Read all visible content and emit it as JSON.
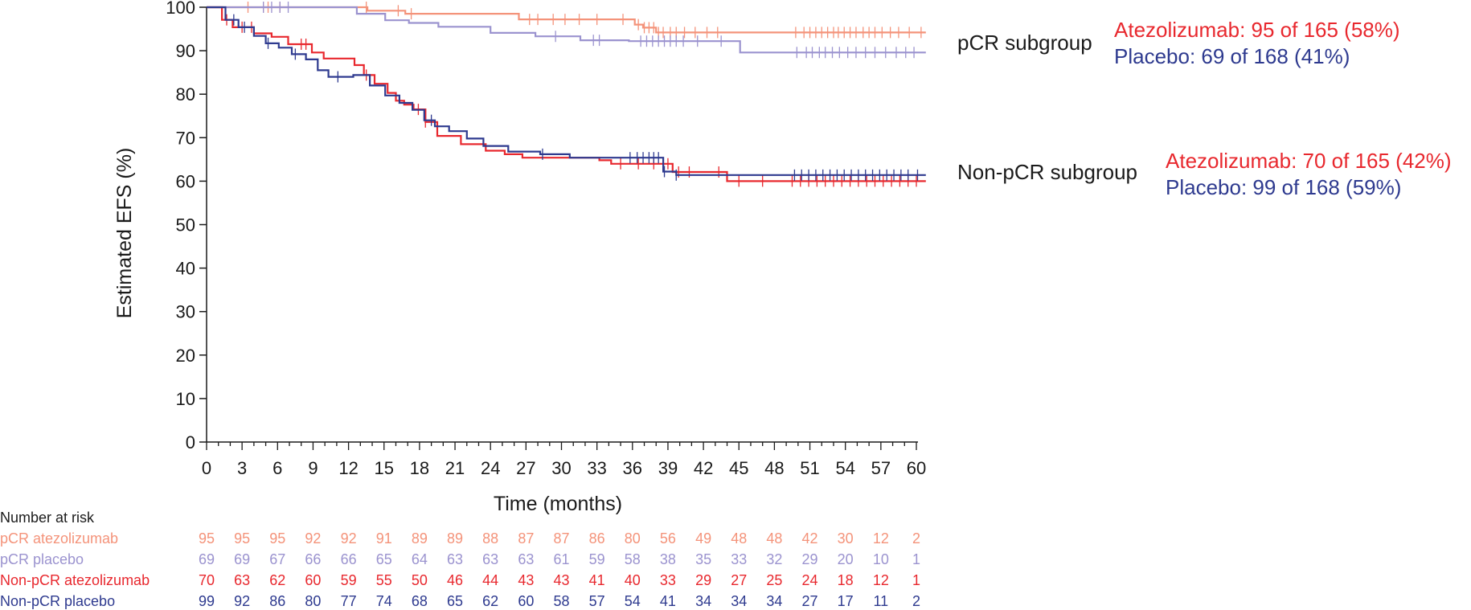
{
  "chart_data": {
    "type": "line",
    "subtype": "kaplan-meier",
    "xlabel": "Time (months)",
    "ylabel": "Estimated EFS (%)",
    "xlim": [
      0,
      60
    ],
    "ylim": [
      0,
      100
    ],
    "xticks": [
      0,
      3,
      6,
      9,
      12,
      15,
      18,
      21,
      24,
      27,
      30,
      33,
      36,
      39,
      42,
      45,
      48,
      51,
      54,
      57,
      60
    ],
    "yticks": [
      0,
      10,
      20,
      30,
      40,
      50,
      60,
      70,
      80,
      90,
      100
    ],
    "grid": false,
    "colors": {
      "pcr_atezolizumab": "#f4937a",
      "pcr_placebo": "#9b93cf",
      "nonpcr_atezolizumab": "#e8282e",
      "nonpcr_placebo": "#2e3a8f",
      "text": "#1a1a1a"
    },
    "groups": [
      {
        "label": "pCR subgroup",
        "lines": [
          {
            "text": "Atezolizumab: 95 of 165 (58%)",
            "color": "nonpcr_atezolizumab"
          },
          {
            "text": "Placebo: 69 of 168  (41%)",
            "color": "nonpcr_placebo"
          }
        ]
      },
      {
        "label": "Non-pCR subgroup",
        "lines": [
          {
            "text": "Atezolizumab: 70 of 165 (42%)",
            "color": "nonpcr_atezolizumab"
          },
          {
            "text": "Placebo: 99 of 168 (59%)",
            "color": "nonpcr_placebo"
          }
        ]
      }
    ],
    "series": [
      {
        "key": "pcr_atezolizumab",
        "steps": [
          [
            0,
            100
          ],
          [
            13.6,
            99.2
          ],
          [
            16.8,
            98.5
          ],
          [
            26.4,
            97.2
          ],
          [
            36.2,
            96
          ],
          [
            36.9,
            95.3
          ],
          [
            38,
            94.2
          ],
          [
            60.8,
            94.2
          ]
        ],
        "censors": [
          3.5,
          4.8,
          5.2,
          6.2,
          13.5,
          16.2,
          17.3,
          27.3,
          28,
          29.3,
          30.3,
          31.5,
          33,
          35.2,
          36.5,
          37,
          37.4,
          37.8,
          38.2,
          38.6,
          39.2,
          39.7,
          40.4,
          41.3,
          42.3,
          43.2,
          49.8,
          50.5,
          51,
          51.5,
          52,
          52.5,
          53,
          53.4,
          53.9,
          54.4,
          54.9,
          55.5,
          56,
          56.5,
          57.1,
          57.8,
          58.5,
          59.4,
          60.4
        ]
      },
      {
        "key": "pcr_placebo",
        "steps": [
          [
            0,
            100
          ],
          [
            12.7,
            98.5
          ],
          [
            15.1,
            97
          ],
          [
            17.1,
            96.4
          ],
          [
            19.6,
            95.5
          ],
          [
            24,
            94.1
          ],
          [
            27.8,
            93.3
          ],
          [
            31.6,
            92.4
          ],
          [
            35.7,
            92.2
          ],
          [
            45.1,
            89.6
          ],
          [
            60.8,
            89.6
          ]
        ],
        "censors": [
          4.8,
          5.5,
          6.2,
          6.9,
          29.5,
          32.7,
          33.2,
          36.7,
          37.2,
          37.7,
          38.2,
          38.7,
          39.2,
          39.7,
          40.3,
          41.5,
          43.5,
          49.9,
          50.7,
          51.2,
          51.8,
          52.3,
          52.9,
          53.5,
          54.2,
          54.9,
          55.7,
          56.5,
          57.4,
          58.3,
          59.1,
          59.8
        ]
      },
      {
        "key": "nonpcr_atezolizumab",
        "steps": [
          [
            0,
            100
          ],
          [
            1.3,
            97.1
          ],
          [
            2.2,
            95.4
          ],
          [
            4,
            94
          ],
          [
            5.5,
            93.2
          ],
          [
            6.9,
            91.5
          ],
          [
            8.9,
            89.6
          ],
          [
            9.9,
            88.2
          ],
          [
            12.5,
            86.7
          ],
          [
            13.3,
            84.4
          ],
          [
            14.2,
            82.4
          ],
          [
            15.3,
            80.3
          ],
          [
            16,
            78.5
          ],
          [
            16.7,
            77.6
          ],
          [
            17.5,
            76.5
          ],
          [
            18.5,
            73.6
          ],
          [
            19.5,
            70.4
          ],
          [
            21.5,
            68.5
          ],
          [
            23.6,
            67
          ],
          [
            25.2,
            66.2
          ],
          [
            26.7,
            65.4
          ],
          [
            33.2,
            64.8
          ],
          [
            34.2,
            64
          ],
          [
            39.4,
            62.1
          ],
          [
            44,
            60
          ],
          [
            60.8,
            60
          ]
        ],
        "censors": [
          1.7,
          3,
          3.8,
          8,
          8.4,
          13.5,
          17.9,
          18.5,
          35,
          36.5,
          37.8,
          39,
          39.9,
          40.8,
          43.3,
          45,
          47,
          49.5,
          50.2,
          50.9,
          51.6,
          52.3,
          53,
          53.7,
          54.4,
          55.1,
          55.8,
          56.5,
          57.2,
          57.9,
          58.6,
          59.3,
          60
        ]
      },
      {
        "key": "nonpcr_placebo",
        "steps": [
          [
            0,
            100
          ],
          [
            1.6,
            97.1
          ],
          [
            2.7,
            95.4
          ],
          [
            4,
            93.4
          ],
          [
            5,
            91.7
          ],
          [
            6.1,
            90.7
          ],
          [
            7.2,
            89.2
          ],
          [
            8.4,
            88
          ],
          [
            9.4,
            85.5
          ],
          [
            10.3,
            84
          ],
          [
            12.4,
            84.4
          ],
          [
            13.8,
            82
          ],
          [
            15.1,
            79.7
          ],
          [
            16.3,
            78
          ],
          [
            17.4,
            76.4
          ],
          [
            18.4,
            74
          ],
          [
            19.3,
            72.6
          ],
          [
            20.5,
            71.5
          ],
          [
            22,
            69.8
          ],
          [
            23.4,
            68.1
          ],
          [
            25.5,
            66.8
          ],
          [
            28.2,
            66.2
          ],
          [
            30.7,
            65.4
          ],
          [
            38.6,
            62.2
          ],
          [
            39.7,
            61.4
          ],
          [
            60.8,
            61.4
          ]
        ],
        "censors": [
          2.3,
          3.2,
          5.2,
          7.5,
          11.1,
          19,
          28.4,
          35.8,
          36.4,
          36.9,
          37.4,
          37.8,
          38.2,
          38.7,
          39.7,
          49.7,
          50.3,
          50.9,
          51.5,
          52.1,
          52.7,
          53.3,
          53.9,
          54.5,
          55.1,
          55.7,
          56.3,
          56.9,
          57.5,
          58.1,
          58.7,
          59.3,
          60.1
        ]
      }
    ],
    "risk_table": {
      "title": "Number at risk",
      "rows": [
        {
          "label": "pCR atezolizumab",
          "color": "pcr_atezolizumab",
          "values": [
            95,
            95,
            95,
            92,
            92,
            91,
            89,
            89,
            88,
            87,
            87,
            86,
            80,
            56,
            49,
            48,
            48,
            42,
            30,
            12,
            2
          ]
        },
        {
          "label": "pCR placebo",
          "color": "pcr_placebo",
          "values": [
            69,
            69,
            67,
            66,
            66,
            65,
            64,
            63,
            63,
            63,
            61,
            59,
            58,
            38,
            35,
            33,
            32,
            29,
            20,
            10,
            1
          ]
        },
        {
          "label": "Non-pCR atezolizumab",
          "color": "nonpcr_atezolizumab",
          "values": [
            70,
            63,
            62,
            60,
            59,
            55,
            50,
            46,
            44,
            43,
            43,
            41,
            40,
            33,
            29,
            27,
            25,
            24,
            18,
            12,
            1
          ]
        },
        {
          "label": "Non-pCR placebo",
          "color": "nonpcr_placebo",
          "values": [
            99,
            92,
            86,
            80,
            77,
            74,
            68,
            65,
            62,
            60,
            58,
            57,
            54,
            41,
            34,
            34,
            34,
            27,
            17,
            11,
            2
          ]
        }
      ]
    }
  }
}
